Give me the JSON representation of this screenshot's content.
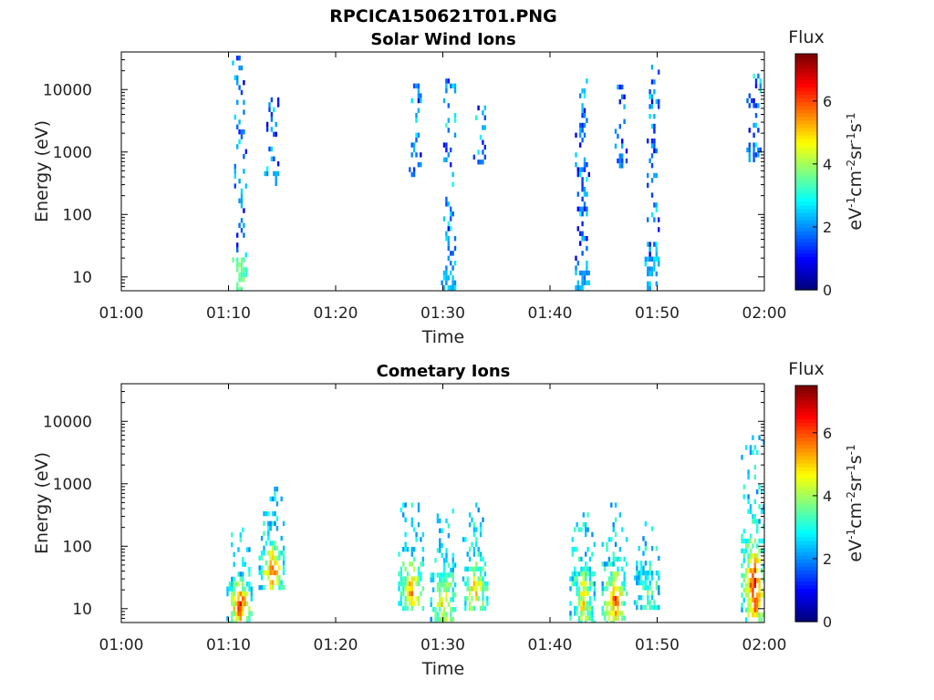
{
  "figure": {
    "title": "RPCICA150621T01.PNG"
  },
  "chart_data": [
    {
      "type": "heatmap",
      "title": "Solar Wind Ions",
      "xlabel": "Time",
      "ylabel": "Energy (eV)",
      "x_ticks": [
        "01:00",
        "01:10",
        "01:20",
        "01:30",
        "01:40",
        "01:50",
        "02:00"
      ],
      "xlim_minutes": [
        0,
        60
      ],
      "y_scale": "log",
      "y_ticks": [
        10,
        100,
        1000,
        10000
      ],
      "y_tick_labels": [
        "10",
        "100",
        "1000",
        "10000"
      ],
      "ylim": [
        6,
        40000
      ],
      "colorbar": {
        "label": "Flux",
        "units": "eV-1cm-2sr-1s-1",
        "range": [
          0,
          7.5
        ],
        "ticks": [
          "0",
          "2",
          "4",
          "6"
        ]
      },
      "bursts": [
        {
          "t_minutes": 11,
          "e_min": 6,
          "e_max": 35000,
          "peak_flux": 4.8
        },
        {
          "t_minutes": 14,
          "e_min": 300,
          "e_max": 9000,
          "peak_flux": 2.6
        },
        {
          "t_minutes": 27.5,
          "e_min": 400,
          "e_max": 15000,
          "peak_flux": 2.2
        },
        {
          "t_minutes": 30.5,
          "e_min": 6,
          "e_max": 15000,
          "peak_flux": 3.0
        },
        {
          "t_minutes": 33.5,
          "e_min": 700,
          "e_max": 8000,
          "peak_flux": 2.4
        },
        {
          "t_minutes": 43,
          "e_min": 6,
          "e_max": 15000,
          "peak_flux": 2.8
        },
        {
          "t_minutes": 46.5,
          "e_min": 600,
          "e_max": 12000,
          "peak_flux": 2.3
        },
        {
          "t_minutes": 49.5,
          "e_min": 6,
          "e_max": 30000,
          "peak_flux": 3.0
        },
        {
          "t_minutes": 59,
          "e_min": 800,
          "e_max": 18000,
          "peak_flux": 2.4
        }
      ]
    },
    {
      "type": "heatmap",
      "title": "Cometary Ions",
      "xlabel": "Time",
      "ylabel": "Energy (eV)",
      "x_ticks": [
        "01:00",
        "01:10",
        "01:20",
        "01:30",
        "01:40",
        "01:50",
        "02:00"
      ],
      "xlim_minutes": [
        0,
        60
      ],
      "y_scale": "log",
      "y_ticks": [
        10,
        100,
        1000,
        10000
      ],
      "y_tick_labels": [
        "10",
        "100",
        "1000",
        "10000"
      ],
      "ylim": [
        6,
        40000
      ],
      "colorbar": {
        "label": "Flux",
        "units": "eV-1cm-2sr-1s-1",
        "range": [
          0,
          7.5
        ],
        "ticks": [
          "0",
          "2",
          "4",
          "6"
        ]
      },
      "bursts": [
        {
          "t_minutes": 11,
          "e_min": 6,
          "e_max": 200,
          "peak_flux": 6.8
        },
        {
          "t_minutes": 14,
          "e_min": 20,
          "e_max": 900,
          "peak_flux": 6.2
        },
        {
          "t_minutes": 27,
          "e_min": 10,
          "e_max": 500,
          "peak_flux": 5.6
        },
        {
          "t_minutes": 30,
          "e_min": 6,
          "e_max": 400,
          "peak_flux": 5.2
        },
        {
          "t_minutes": 33,
          "e_min": 10,
          "e_max": 500,
          "peak_flux": 5.4
        },
        {
          "t_minutes": 43,
          "e_min": 6,
          "e_max": 600,
          "peak_flux": 5.0
        },
        {
          "t_minutes": 46,
          "e_min": 6,
          "e_max": 500,
          "peak_flux": 6.3
        },
        {
          "t_minutes": 49,
          "e_min": 10,
          "e_max": 300,
          "peak_flux": 3.6
        },
        {
          "t_minutes": 59,
          "e_min": 6,
          "e_max": 6000,
          "peak_flux": 7.0
        }
      ]
    }
  ]
}
